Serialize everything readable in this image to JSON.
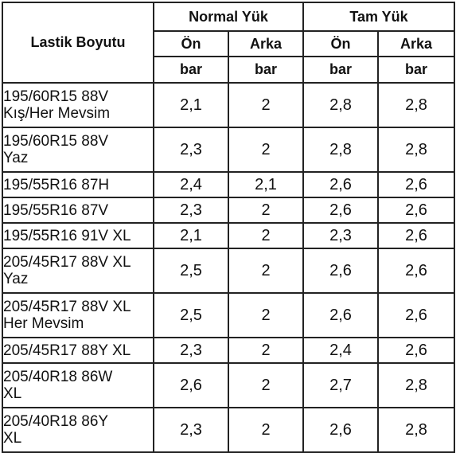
{
  "table": {
    "header": {
      "size_label": "Lastik Boyutu",
      "normal_label": "Normal Yük",
      "full_label": "Tam Yük",
      "front_label": "Ön",
      "rear_label": "Arka",
      "unit_label": "bar"
    },
    "rows": [
      {
        "size": "195/60R15 88V\nKış/Her Mevsim",
        "normal_front": "2,1",
        "normal_rear": "2",
        "full_front": "2,8",
        "full_rear": "2,8"
      },
      {
        "size": "195/60R15 88V\nYaz",
        "normal_front": "2,3",
        "normal_rear": "2",
        "full_front": "2,8",
        "full_rear": "2,8"
      },
      {
        "size": "195/55R16 87H",
        "normal_front": "2,4",
        "normal_rear": "2,1",
        "full_front": "2,6",
        "full_rear": "2,6"
      },
      {
        "size": "195/55R16 87V",
        "normal_front": "2,3",
        "normal_rear": "2",
        "full_front": "2,6",
        "full_rear": "2,6"
      },
      {
        "size": "195/55R16 91V XL",
        "normal_front": "2,1",
        "normal_rear": "2",
        "full_front": "2,3",
        "full_rear": "2,6"
      },
      {
        "size": "205/45R17 88V XL\nYaz",
        "normal_front": "2,5",
        "normal_rear": "2",
        "full_front": "2,6",
        "full_rear": "2,6"
      },
      {
        "size": "205/45R17 88V XL\nHer Mevsim",
        "normal_front": "2,5",
        "normal_rear": "2",
        "full_front": "2,6",
        "full_rear": "2,6"
      },
      {
        "size": "205/45R17 88Y XL",
        "normal_front": "2,3",
        "normal_rear": "2",
        "full_front": "2,4",
        "full_rear": "2,6"
      },
      {
        "size": "205/40R18 86W\nXL",
        "normal_front": "2,6",
        "normal_rear": "2",
        "full_front": "2,7",
        "full_rear": "2,8"
      },
      {
        "size": "205/40R18 86Y\nXL",
        "normal_front": "2,3",
        "normal_rear": "2",
        "full_front": "2,6",
        "full_rear": "2,8"
      }
    ]
  }
}
